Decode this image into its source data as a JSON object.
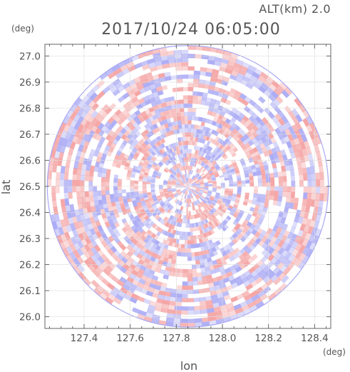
{
  "chart_data": {
    "type": "heatmap",
    "title": "2017/10/24 06:05:00",
    "annotation": "ALT(km) 2.0",
    "xlabel": "lon",
    "ylabel": "lat",
    "x_unit": "(deg)",
    "y_unit": "(deg)",
    "xlim": [
      127.23,
      128.47
    ],
    "ylim": [
      25.955,
      27.045
    ],
    "x_ticks": [
      "127.4",
      "127.6",
      "127.8",
      "128.0",
      "128.2",
      "128.4"
    ],
    "x_tick_values": [
      127.4,
      127.6,
      127.8,
      128.0,
      128.2,
      128.4
    ],
    "y_ticks": [
      "27.0",
      "26.9",
      "26.8",
      "26.7",
      "26.6",
      "26.5",
      "26.4",
      "26.3",
      "26.2",
      "26.1",
      "26.0"
    ],
    "y_tick_values": [
      27.0,
      26.9,
      26.8,
      26.7,
      26.6,
      26.5,
      26.4,
      26.3,
      26.2,
      26.1,
      26.0
    ],
    "radar_center": {
      "lon": 127.85,
      "lat": 26.5
    },
    "radar_radius_lat_deg": 0.54,
    "colors": {
      "positive": "#f4a0a0",
      "negative": "#a8a8f4",
      "frame": "#666666",
      "text": "#555555"
    }
  }
}
